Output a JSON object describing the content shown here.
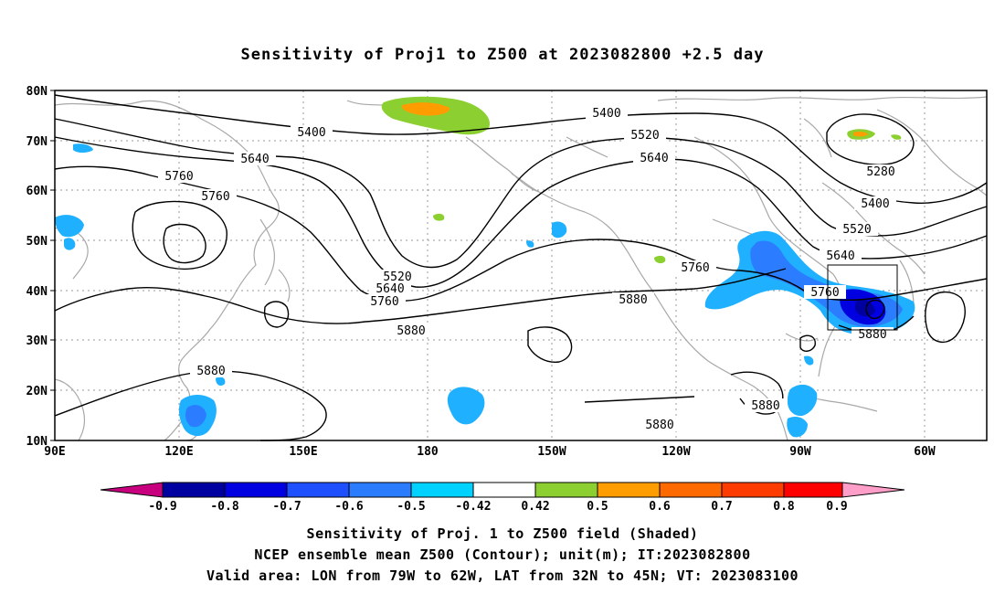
{
  "title": "Sensitivity of Proj1 to Z500 at 2023082800 +2.5 day",
  "map": {
    "lat_labels": [
      "80N",
      "70N",
      "60N",
      "50N",
      "40N",
      "30N",
      "20N",
      "10N"
    ],
    "lon_labels": [
      "90E",
      "120E",
      "150E",
      "180",
      "150W",
      "120W",
      "90W",
      "60W"
    ],
    "contour_labels": [
      "5400",
      "5640",
      "5760",
      "5760",
      "5520",
      "5640",
      "5760",
      "5880",
      "5880",
      "5880",
      "5400",
      "5520",
      "5640",
      "5760",
      "5880",
      "5280",
      "5400",
      "5520",
      "5640",
      "5760",
      "5880",
      "5880"
    ],
    "valid_box": {
      "lon_from": "79W",
      "lon_to": "62W",
      "lat_from": "32N",
      "lat_to": "45N"
    }
  },
  "colorbar": {
    "labels": [
      "-0.9",
      "-0.8",
      "-0.7",
      "-0.6",
      "-0.5",
      "-0.42",
      "0.42",
      "0.5",
      "0.6",
      "0.7",
      "0.8",
      "0.9"
    ],
    "colors": [
      "#c8007f",
      "#0000a0",
      "#0000e0",
      "#1e50ff",
      "#2b7cff",
      "#1fb0ff",
      "#00d2ff",
      "#ffffff",
      "#8ccf30",
      "#ff9d00",
      "#ff6a00",
      "#ff3c00",
      "#ff0000",
      "#ff9ec8"
    ]
  },
  "captions": {
    "line1": "Sensitivity of Proj. 1 to Z500 field (Shaded)",
    "line2": "NCEP ensemble mean Z500 (Contour); unit(m); IT:2023082800",
    "line3": "Valid area: LON from 79W to 62W, LAT from 32N to 45N; VT: 2023083100"
  }
}
